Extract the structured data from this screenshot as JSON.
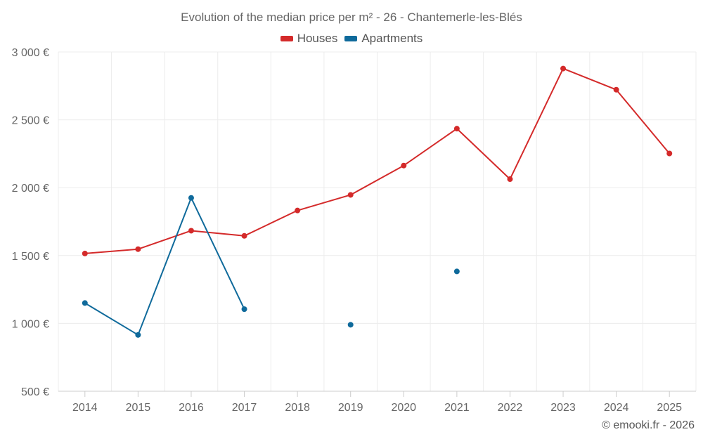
{
  "chart_data": {
    "type": "line",
    "title": "Evolution of the median price per m² - 26 - Chantemerle-les-Blés",
    "xlabel": "",
    "ylabel": "",
    "categories": [
      "2014",
      "2015",
      "2016",
      "2017",
      "2018",
      "2019",
      "2020",
      "2021",
      "2022",
      "2023",
      "2024",
      "2025"
    ],
    "ylim": [
      500,
      3000
    ],
    "yticks": [
      500,
      1000,
      1500,
      2000,
      2500,
      3000
    ],
    "ytick_labels": [
      "500 €",
      "1 000 €",
      "1 500 €",
      "2 000 €",
      "2 500 €",
      "3 000 €"
    ],
    "grid": true,
    "legend_position": "top-center",
    "series": [
      {
        "name": "Houses",
        "color": "#d42a2a",
        "values": [
          1515,
          1547,
          1683,
          1645,
          1832,
          1947,
          2163,
          2435,
          2063,
          2878,
          2722,
          2252
        ]
      },
      {
        "name": "Apartments",
        "color": "#0f6a9b",
        "values": [
          1150,
          915,
          1925,
          1105,
          null,
          990,
          null,
          1383,
          null,
          null,
          null,
          null
        ]
      }
    ]
  },
  "footer": {
    "copyright": "© emooki.fr - 2026"
  }
}
